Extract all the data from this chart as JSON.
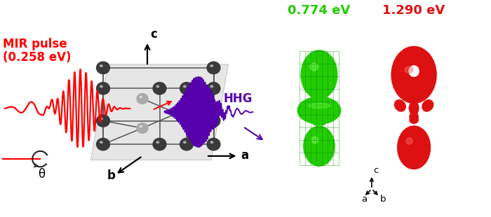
{
  "bg_color": "#ffffff",
  "mir_label_1": "MIR pulse",
  "mir_label_2": "(0.258 eV)",
  "mir_color": "#ff0000",
  "hhg_label": "HHG",
  "hhg_color": "#5500aa",
  "theta_label": "θ",
  "bond_color": "#555555",
  "atom_dark": "#3a3a3a",
  "atom_mid": "#aaaaaa",
  "plane_color": "#e0e0e0",
  "label_green": "0.774 eV",
  "label_red": "1.290 eV",
  "green_color": "#22cc00",
  "green_dark": "#008800",
  "green_light": "#88ff66",
  "red_color": "#dd1111",
  "red_light": "#ff6666"
}
